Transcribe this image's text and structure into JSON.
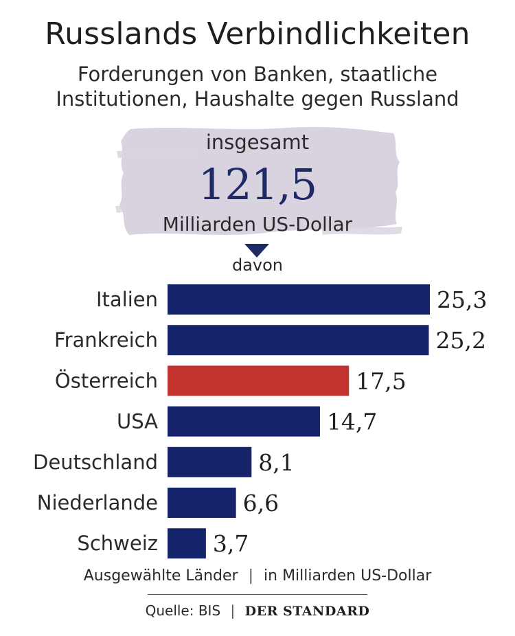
{
  "header": {
    "title": "Russlands Verbindlichkeiten",
    "subtitle_line1": "Forderungen von Banken, staatliche",
    "subtitle_line2": "Institutionen, Haushalte gegen Russland"
  },
  "total": {
    "label": "insgesamt",
    "value": "121,5",
    "unit": "Milliarden US-Dollar",
    "davon": "davon"
  },
  "footer": {
    "note_left": "Ausgewählte Länder",
    "note_sep": "|",
    "note_right": "in Milliarden US-Dollar",
    "source": "Quelle: BIS",
    "source_sep": "|",
    "brand": "DER STANDARD"
  },
  "colors": {
    "bar_default": "#15236a",
    "bar_highlight": "#c1332e",
    "brush": "#d9d3df"
  },
  "chart_data": {
    "type": "bar",
    "orientation": "horizontal",
    "categories": [
      "Italien",
      "Frankreich",
      "Österreich",
      "USA",
      "Deutschland",
      "Niederlande",
      "Schweiz"
    ],
    "values": [
      25.3,
      25.2,
      17.5,
      14.7,
      8.1,
      6.6,
      3.7
    ],
    "value_labels": [
      "25,3",
      "25,2",
      "17,5",
      "14,7",
      "8,1",
      "6,6",
      "3,7"
    ],
    "highlight": "Österreich",
    "xlim": [
      0,
      25.3
    ]
  }
}
